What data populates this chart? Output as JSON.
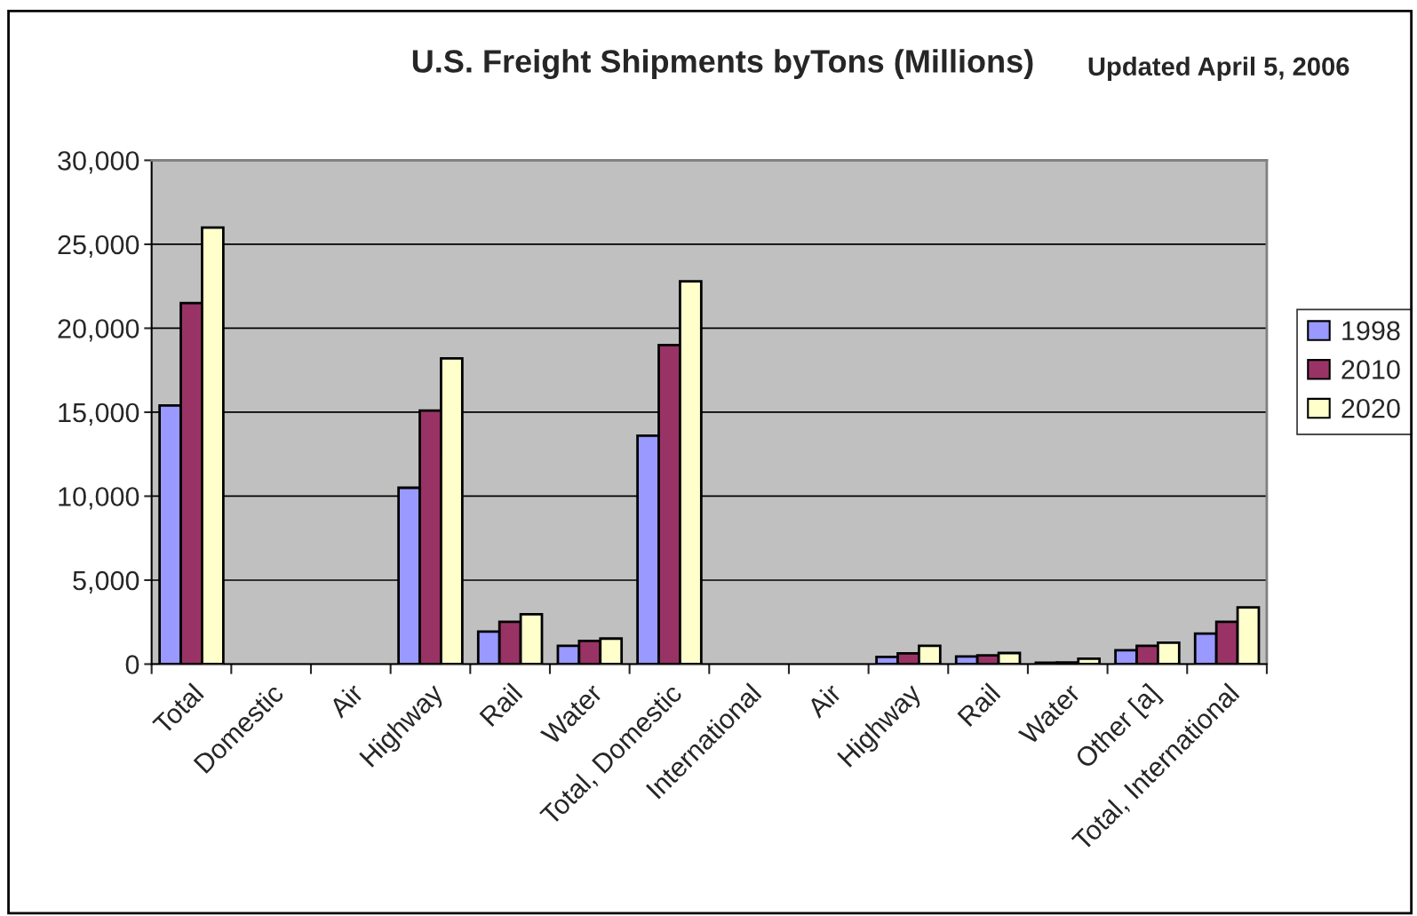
{
  "chart_data": {
    "type": "bar",
    "title": "U.S. Freight Shipments byTons (Millions)",
    "annotations": [
      "Updated April 5, 2006"
    ],
    "categories": [
      "Total",
      "Domestic",
      "Air",
      "Highway",
      "Rail",
      "Water",
      "Total, Domestic",
      "International",
      "Air",
      "Highway",
      "Rail",
      "Water",
      "Other [a]",
      "Total, International"
    ],
    "series": [
      {
        "name": "1998",
        "color": "#9999ff",
        "values": [
          15400,
          null,
          null,
          10500,
          1940,
          1090,
          13600,
          null,
          null,
          430,
          450,
          80,
          820,
          1820
        ]
      },
      {
        "name": "2010",
        "color": "#993366",
        "values": [
          21500,
          null,
          null,
          15100,
          2520,
          1380,
          19000,
          null,
          null,
          640,
          520,
          100,
          1090,
          2520
        ]
      },
      {
        "name": "2020",
        "color": "#ffffcc",
        "values": [
          26000,
          null,
          null,
          18200,
          2970,
          1520,
          22800,
          null,
          null,
          1090,
          660,
          320,
          1270,
          3380
        ]
      }
    ],
    "ylim": [
      0,
      30000
    ],
    "yticks": [
      {
        "value": 0,
        "label": "0"
      },
      {
        "value": 5000,
        "label": "5,000"
      },
      {
        "value": 10000,
        "label": "10,000"
      },
      {
        "value": 15000,
        "label": "15,000"
      },
      {
        "value": 20000,
        "label": "20,000"
      },
      {
        "value": 25000,
        "label": "25,000"
      },
      {
        "value": 30000,
        "label": "30,000"
      }
    ],
    "grid": "y",
    "legend": "right"
  }
}
